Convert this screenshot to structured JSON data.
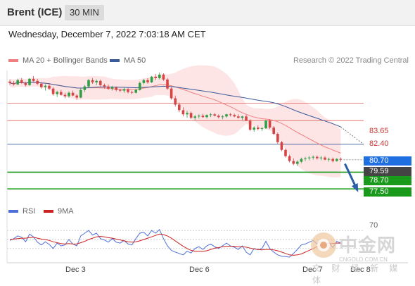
{
  "header": {
    "instrument": "Brent (ICE)",
    "timeframe": "30 MIN"
  },
  "datetime": "Wednesday, December 7, 2022 7:03:18 AM CET",
  "legend": {
    "ma20_label": "MA 20 + Bollinger Bands",
    "ma50_label": "MA 50",
    "credit": "Research © 2022 Trading Central"
  },
  "colors": {
    "up": "#2f9e44",
    "down": "#d64545",
    "ma20": "#f08080",
    "ma50": "#3b5a9a",
    "band": "#fde0e0",
    "support": "#1a9a1a",
    "resistance": "#e06060",
    "current": "#444444",
    "pivot": "#1f6fe0",
    "rsi": "#4f6fd8",
    "rsi_ma": "#cc2222"
  },
  "levels": [
    {
      "value": "83.65",
      "kind": "resistance"
    },
    {
      "value": "82.40",
      "kind": "resistance"
    },
    {
      "value": "80.70",
      "kind": "pivot"
    },
    {
      "value": "79.59",
      "kind": "current"
    },
    {
      "value": "78.70",
      "kind": "support"
    },
    {
      "value": "77.50",
      "kind": "support"
    }
  ],
  "rsi_panel": {
    "rsi_label": "RSI",
    "ma_label": "9MA",
    "level_high": "70"
  },
  "x_axis": {
    "labels": [
      "Dec 3",
      "Dec 6",
      "Dec 7",
      "Dec 8"
    ]
  },
  "watermark": {
    "brand": "中金网",
    "domain": "CNGOLD.COM.CN",
    "slogan": "文 财 经 新 媒 体"
  },
  "chart_data": {
    "type": "candlestick",
    "y_axis": {
      "range": [
        76.9,
        86.0
      ]
    },
    "candles": [
      [
        85.2,
        85.35,
        84.95,
        85.1
      ],
      [
        85.1,
        85.25,
        84.9,
        85.0
      ],
      [
        85.0,
        85.4,
        84.95,
        85.3
      ],
      [
        85.3,
        85.45,
        85.05,
        85.1
      ],
      [
        85.1,
        85.2,
        84.85,
        84.95
      ],
      [
        84.95,
        85.45,
        84.9,
        85.4
      ],
      [
        85.4,
        85.6,
        85.2,
        85.25
      ],
      [
        85.25,
        85.4,
        84.95,
        85.05
      ],
      [
        85.05,
        85.15,
        84.7,
        84.8
      ],
      [
        84.8,
        85.0,
        84.55,
        84.9
      ],
      [
        84.9,
        85.05,
        84.6,
        84.7
      ],
      [
        84.7,
        84.8,
        84.2,
        84.3
      ],
      [
        84.3,
        84.55,
        84.1,
        84.45
      ],
      [
        84.45,
        84.6,
        84.2,
        84.25
      ],
      [
        84.25,
        84.4,
        84.0,
        84.15
      ],
      [
        84.15,
        84.5,
        84.05,
        84.4
      ],
      [
        84.4,
        84.55,
        84.15,
        84.2
      ],
      [
        84.2,
        84.3,
        83.9,
        84.05
      ],
      [
        84.05,
        84.7,
        84.0,
        84.6
      ],
      [
        84.6,
        84.95,
        84.45,
        84.85
      ],
      [
        84.85,
        85.4,
        84.75,
        85.3
      ],
      [
        85.3,
        85.45,
        85.05,
        85.15
      ],
      [
        85.15,
        85.35,
        84.95,
        85.25
      ],
      [
        85.25,
        85.35,
        84.85,
        84.95
      ],
      [
        84.95,
        85.05,
        84.7,
        84.85
      ],
      [
        84.85,
        85.0,
        84.6,
        84.7
      ],
      [
        84.7,
        84.9,
        84.55,
        84.8
      ],
      [
        84.8,
        84.85,
        84.5,
        84.6
      ],
      [
        84.6,
        84.7,
        84.45,
        84.55
      ],
      [
        84.55,
        84.75,
        84.4,
        84.65
      ],
      [
        84.65,
        84.75,
        84.35,
        84.45
      ],
      [
        84.45,
        84.55,
        84.3,
        84.4
      ],
      [
        84.4,
        84.7,
        84.35,
        84.6
      ],
      [
        84.6,
        85.2,
        84.55,
        85.1
      ],
      [
        85.1,
        85.4,
        85.0,
        85.3
      ],
      [
        85.3,
        85.45,
        85.05,
        85.15
      ],
      [
        85.15,
        85.6,
        85.1,
        85.55
      ],
      [
        85.55,
        85.75,
        85.3,
        85.45
      ],
      [
        85.45,
        85.85,
        85.35,
        85.7
      ],
      [
        85.7,
        85.8,
        85.25,
        85.35
      ],
      [
        85.35,
        85.45,
        84.6,
        84.7
      ],
      [
        84.7,
        84.8,
        83.9,
        84.0
      ],
      [
        84.0,
        84.2,
        83.4,
        83.55
      ],
      [
        83.55,
        83.7,
        83.0,
        83.15
      ],
      [
        83.15,
        83.35,
        82.7,
        82.85
      ],
      [
        82.85,
        83.1,
        82.6,
        82.95
      ],
      [
        82.95,
        83.05,
        82.5,
        82.6
      ],
      [
        82.6,
        82.8,
        82.45,
        82.7
      ],
      [
        82.7,
        82.85,
        82.55,
        82.75
      ],
      [
        82.75,
        82.9,
        82.6,
        82.65
      ],
      [
        82.65,
        82.85,
        82.55,
        82.8
      ],
      [
        82.8,
        82.95,
        82.65,
        82.85
      ],
      [
        82.85,
        82.95,
        82.7,
        82.75
      ],
      [
        82.75,
        82.85,
        82.55,
        82.65
      ],
      [
        82.65,
        82.8,
        82.5,
        82.7
      ],
      [
        82.7,
        82.9,
        82.6,
        82.85
      ],
      [
        82.85,
        82.95,
        82.7,
        82.8
      ],
      [
        82.8,
        82.9,
        82.65,
        82.7
      ],
      [
        82.7,
        82.85,
        82.55,
        82.6
      ],
      [
        82.6,
        82.75,
        82.45,
        82.7
      ],
      [
        82.7,
        82.8,
        82.35,
        82.4
      ],
      [
        82.4,
        82.5,
        81.65,
        81.75
      ],
      [
        81.75,
        82.0,
        81.6,
        81.9
      ],
      [
        81.9,
        82.05,
        81.7,
        81.8
      ],
      [
        81.8,
        81.95,
        81.65,
        81.85
      ],
      [
        81.85,
        82.45,
        81.8,
        82.4
      ],
      [
        82.4,
        82.5,
        81.8,
        81.9
      ],
      [
        81.9,
        82.0,
        81.35,
        81.45
      ],
      [
        81.45,
        81.55,
        80.75,
        80.85
      ],
      [
        80.85,
        80.95,
        80.2,
        80.3
      ],
      [
        80.3,
        80.4,
        79.75,
        79.85
      ],
      [
        79.85,
        79.95,
        79.4,
        79.5
      ],
      [
        79.5,
        79.7,
        79.2,
        79.3
      ],
      [
        79.3,
        79.55,
        79.15,
        79.45
      ],
      [
        79.45,
        79.75,
        79.35,
        79.65
      ],
      [
        79.65,
        79.8,
        79.5,
        79.7
      ],
      [
        79.7,
        79.85,
        79.55,
        79.75
      ],
      [
        79.75,
        79.9,
        79.6,
        79.8
      ],
      [
        79.8,
        79.9,
        79.6,
        79.7
      ],
      [
        79.7,
        79.85,
        79.55,
        79.75
      ],
      [
        79.75,
        79.85,
        79.55,
        79.6
      ],
      [
        79.6,
        79.75,
        79.45,
        79.65
      ],
      [
        79.65,
        79.75,
        79.4,
        79.5
      ],
      [
        79.5,
        79.7,
        79.45,
        79.65
      ],
      [
        79.65,
        79.75,
        79.45,
        79.59
      ]
    ],
    "rsi_range": [
      0,
      100
    ],
    "rsi": [
      48,
      52,
      58,
      55,
      45,
      62,
      56,
      44,
      38,
      45,
      39,
      30,
      42,
      36,
      38,
      50,
      40,
      36,
      58,
      64,
      70,
      60,
      64,
      52,
      49,
      44,
      52,
      44,
      42,
      48,
      40,
      38,
      52,
      64,
      66,
      58,
      70,
      64,
      72,
      52,
      36,
      26,
      22,
      19,
      16,
      24,
      20,
      30,
      34,
      28,
      36,
      40,
      34,
      30,
      36,
      42,
      36,
      33,
      28,
      36,
      22,
      16,
      30,
      27,
      30,
      46,
      30,
      22,
      16,
      13,
      12,
      11,
      19,
      28,
      38,
      40,
      44,
      48,
      40,
      46,
      36,
      44,
      32,
      46,
      42
    ],
    "rsi_ma": [
      50,
      51,
      52,
      53,
      53,
      54,
      55,
      53,
      51,
      50,
      48,
      45,
      43,
      41,
      40,
      41,
      40,
      40,
      43,
      46,
      50,
      53,
      56,
      57,
      56,
      54,
      53,
      51,
      49,
      47,
      45,
      44,
      45,
      47,
      50,
      53,
      56,
      59,
      62,
      61,
      58,
      53,
      47,
      41,
      35,
      30,
      26,
      24,
      24,
      24,
      25,
      28,
      31,
      32,
      34,
      35,
      35,
      35,
      34,
      34,
      33,
      31,
      29,
      28,
      27,
      28,
      28,
      27,
      25,
      22,
      19,
      16,
      15,
      16,
      18,
      22,
      26,
      30,
      34,
      37,
      39,
      41,
      41,
      42,
      42
    ]
  }
}
